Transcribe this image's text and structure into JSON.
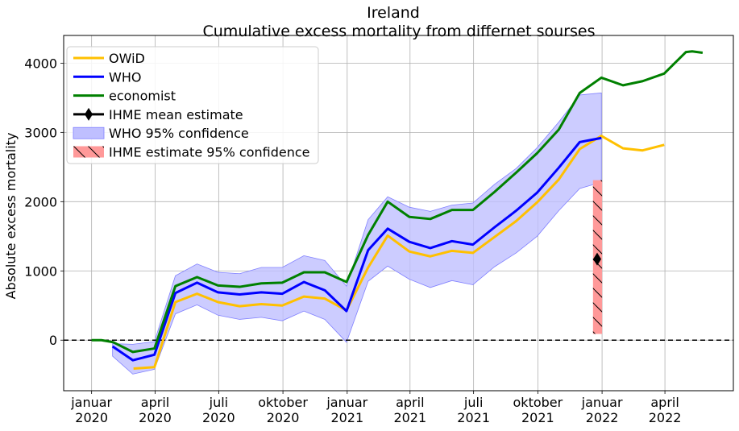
{
  "chart_data": {
    "type": "line",
    "title": "Ireland",
    "subtitle": "Cumulative excess mortality from differnet sourses",
    "xlabel": "",
    "ylabel": "Absolute excess mortality",
    "xlim": [
      "2019-11-22",
      "2022-07-08"
    ],
    "ylim": [
      -730,
      4400
    ],
    "grid": true,
    "zero_line": {
      "y": 0,
      "style": "dashed",
      "color": "#000000"
    },
    "x_ticks": [
      {
        "date": "2020-01-01",
        "label1": "januar",
        "label2": "2020"
      },
      {
        "date": "2020-04-01",
        "label1": "april",
        "label2": "2020"
      },
      {
        "date": "2020-07-01",
        "label1": "juli",
        "label2": "2020"
      },
      {
        "date": "2020-10-01",
        "label1": "oktober",
        "label2": "2020"
      },
      {
        "date": "2021-01-01",
        "label1": "januar",
        "label2": "2021"
      },
      {
        "date": "2021-04-01",
        "label1": "april",
        "label2": "2021"
      },
      {
        "date": "2021-07-01",
        "label1": "juli",
        "label2": "2021"
      },
      {
        "date": "2021-10-01",
        "label1": "oktober",
        "label2": "2021"
      },
      {
        "date": "2022-01-01",
        "label1": "januar",
        "label2": "2022"
      },
      {
        "date": "2022-04-01",
        "label1": "april",
        "label2": "2022"
      }
    ],
    "y_ticks": [
      0,
      1000,
      2000,
      3000,
      4000
    ],
    "y_tick_labels": [
      "0",
      "1000",
      "2000",
      "3000",
      "4000"
    ],
    "legend": {
      "position": "top-left",
      "entries": [
        {
          "label": "OWiD",
          "kind": "line",
          "color": "#FFC000"
        },
        {
          "label": "WHO",
          "kind": "line",
          "color": "#0000FF"
        },
        {
          "label": "economist",
          "kind": "line",
          "color": "#008000"
        },
        {
          "label": "IHME mean estimate",
          "kind": "marker",
          "color": "#000000"
        },
        {
          "label": "WHO 95% confidence",
          "kind": "patch",
          "color": "#BFBFFF"
        },
        {
          "label": " IHME estimate 95% confidence",
          "kind": "hatch",
          "color": "#FF9999"
        }
      ]
    },
    "series": [
      {
        "name": "OWiD",
        "color": "#FFC000",
        "points": [
          [
            "2020-03-01",
            -410
          ],
          [
            "2020-03-31",
            -390
          ],
          [
            "2020-04-30",
            550
          ],
          [
            "2020-05-31",
            670
          ],
          [
            "2020-06-30",
            550
          ],
          [
            "2020-07-31",
            490
          ],
          [
            "2020-08-31",
            520
          ],
          [
            "2020-09-30",
            500
          ],
          [
            "2020-10-31",
            630
          ],
          [
            "2020-11-30",
            600
          ],
          [
            "2020-12-31",
            430
          ],
          [
            "2021-01-31",
            1050
          ],
          [
            "2021-02-28",
            1510
          ],
          [
            "2021-03-31",
            1280
          ],
          [
            "2021-04-30",
            1210
          ],
          [
            "2021-05-31",
            1290
          ],
          [
            "2021-06-30",
            1260
          ],
          [
            "2021-07-31",
            1490
          ],
          [
            "2021-08-31",
            1720
          ],
          [
            "2021-09-30",
            1990
          ],
          [
            "2021-10-31",
            2320
          ],
          [
            "2021-11-30",
            2760
          ],
          [
            "2021-12-31",
            2950
          ],
          [
            "2022-01-31",
            2770
          ],
          [
            "2022-02-28",
            2740
          ],
          [
            "2022-03-31",
            2820
          ]
        ]
      },
      {
        "name": "WHO",
        "color": "#0000FF",
        "points": [
          [
            "2020-01-31",
            -90
          ],
          [
            "2020-02-29",
            -290
          ],
          [
            "2020-03-31",
            -210
          ],
          [
            "2020-04-30",
            680
          ],
          [
            "2020-05-31",
            830
          ],
          [
            "2020-06-30",
            690
          ],
          [
            "2020-07-31",
            660
          ],
          [
            "2020-08-31",
            690
          ],
          [
            "2020-09-30",
            670
          ],
          [
            "2020-10-31",
            840
          ],
          [
            "2020-11-30",
            720
          ],
          [
            "2020-12-31",
            420
          ],
          [
            "2021-01-31",
            1300
          ],
          [
            "2021-02-28",
            1610
          ],
          [
            "2021-03-31",
            1420
          ],
          [
            "2021-04-30",
            1330
          ],
          [
            "2021-05-31",
            1430
          ],
          [
            "2021-06-30",
            1380
          ],
          [
            "2021-07-31",
            1630
          ],
          [
            "2021-08-31",
            1870
          ],
          [
            "2021-09-30",
            2130
          ],
          [
            "2021-10-31",
            2490
          ],
          [
            "2021-11-30",
            2860
          ],
          [
            "2021-12-31",
            2920
          ]
        ]
      },
      {
        "name": "economist",
        "color": "#008000",
        "points": [
          [
            "2020-01-01",
            0
          ],
          [
            "2020-01-15",
            0
          ],
          [
            "2020-02-01",
            -30
          ],
          [
            "2020-02-29",
            -170
          ],
          [
            "2020-03-31",
            -120
          ],
          [
            "2020-04-30",
            780
          ],
          [
            "2020-05-31",
            910
          ],
          [
            "2020-06-30",
            790
          ],
          [
            "2020-07-31",
            770
          ],
          [
            "2020-08-31",
            820
          ],
          [
            "2020-09-30",
            830
          ],
          [
            "2020-10-31",
            980
          ],
          [
            "2020-11-30",
            980
          ],
          [
            "2020-12-31",
            840
          ],
          [
            "2021-01-31",
            1520
          ],
          [
            "2021-02-28",
            2000
          ],
          [
            "2021-03-31",
            1780
          ],
          [
            "2021-04-30",
            1750
          ],
          [
            "2021-05-31",
            1880
          ],
          [
            "2021-06-30",
            1880
          ],
          [
            "2021-07-31",
            2140
          ],
          [
            "2021-08-31",
            2420
          ],
          [
            "2021-09-30",
            2700
          ],
          [
            "2021-10-31",
            3040
          ],
          [
            "2021-11-30",
            3570
          ],
          [
            "2021-12-31",
            3790
          ],
          [
            "2022-01-31",
            3680
          ],
          [
            "2022-02-28",
            3740
          ],
          [
            "2022-03-31",
            3850
          ],
          [
            "2022-04-10",
            3950
          ],
          [
            "2022-05-01",
            4160
          ],
          [
            "2022-05-10",
            4170
          ],
          [
            "2022-05-25",
            4150
          ]
        ]
      }
    ],
    "who_confidence_band": {
      "label": "WHO 95% confidence",
      "color": "#BFBFFF",
      "points": [
        [
          "2020-01-31",
          -50,
          -230
        ],
        [
          "2020-02-29",
          -60,
          -490
        ],
        [
          "2020-03-31",
          -20,
          -420
        ],
        [
          "2020-04-30",
          930,
          380
        ],
        [
          "2020-05-31",
          1100,
          510
        ],
        [
          "2020-06-30",
          980,
          360
        ],
        [
          "2020-07-31",
          960,
          300
        ],
        [
          "2020-08-31",
          1050,
          330
        ],
        [
          "2020-09-30",
          1050,
          280
        ],
        [
          "2020-10-31",
          1220,
          420
        ],
        [
          "2020-11-30",
          1150,
          300
        ],
        [
          "2020-12-31",
          780,
          -30
        ],
        [
          "2021-01-31",
          1740,
          850
        ],
        [
          "2021-02-28",
          2070,
          1070
        ],
        [
          "2021-03-31",
          1920,
          880
        ],
        [
          "2021-04-30",
          1860,
          760
        ],
        [
          "2021-05-31",
          1950,
          860
        ],
        [
          "2021-06-30",
          1980,
          800
        ],
        [
          "2021-07-31",
          2250,
          1060
        ],
        [
          "2021-08-31",
          2480,
          1260
        ],
        [
          "2021-09-30",
          2780,
          1500
        ],
        [
          "2021-10-31",
          3150,
          1870
        ],
        [
          "2021-11-30",
          3540,
          2190
        ],
        [
          "2021-12-31",
          3570,
          2280
        ]
      ]
    },
    "ihme_interval": {
      "label": " IHME estimate 95% confidence",
      "color": "#FF9999",
      "x_start": "2021-12-19",
      "x_end": "2022-01-01",
      "low": 90,
      "high": 2310
    },
    "ihme_mean": {
      "label": "IHME mean estimate",
      "date": "2021-12-25",
      "value": 1170
    }
  }
}
